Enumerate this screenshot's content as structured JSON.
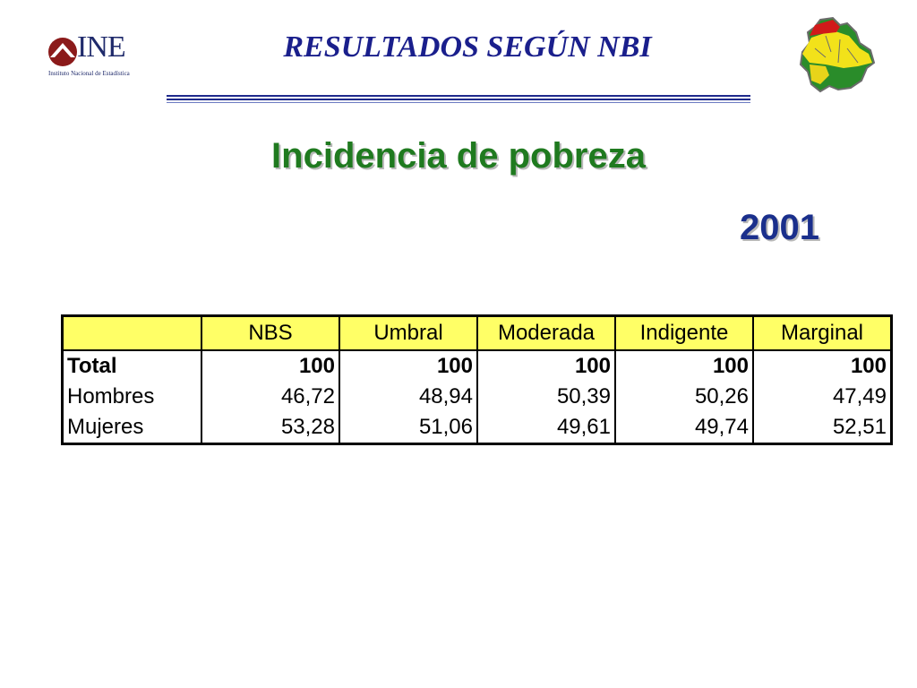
{
  "header": {
    "title": "RESULTADOS SEGÚN NBI",
    "logo": {
      "name": "INE",
      "subtitle": "Instituto Nacional de Estadística"
    },
    "map_icon": "bolivia-map-icon"
  },
  "slide": {
    "title": "Incidencia de pobreza",
    "year": "2001"
  },
  "table": {
    "columns": [
      "",
      "NBS",
      "Umbral",
      "Moderada",
      "Indigente",
      "Marginal"
    ],
    "rows": [
      {
        "label": "Total",
        "values": [
          "100",
          "100",
          "100",
          "100",
          "100"
        ]
      },
      {
        "label": "Hombres",
        "values": [
          "46,72",
          "48,94",
          "50,39",
          "50,26",
          "47,49"
        ]
      },
      {
        "label": "Mujeres",
        "values": [
          "53,28",
          "51,06",
          "49,61",
          "49,74",
          "52,51"
        ]
      }
    ]
  },
  "colors": {
    "header_title": "#1a1f8c",
    "slide_title": "#1f7a1f",
    "year": "#1a2f8c",
    "table_header_bg": "#ffff66"
  }
}
